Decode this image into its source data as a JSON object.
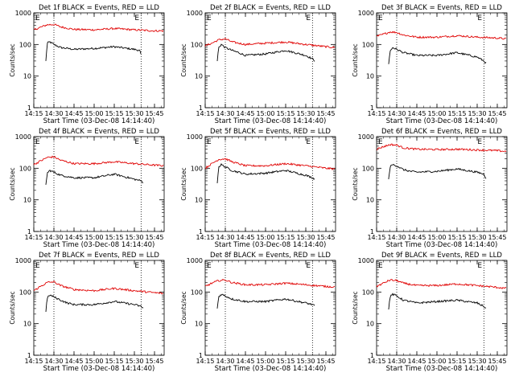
{
  "shared": {
    "ylabel": "Counts/sec",
    "xlabel": "Start Time (03-Dec-08 14:14:40)",
    "x_tick_labels": [
      "14:15",
      "14:30",
      "14:45",
      "15:00",
      "15:15",
      "15:30",
      "15:45"
    ],
    "y_tick_labels": [
      "1",
      "10",
      "100",
      "1000"
    ],
    "marker_label": "E",
    "colors": {
      "events": "#000000",
      "lld": "#e00000"
    }
  },
  "chart_data": [
    {
      "type": "line",
      "title": "Det 1f BLACK = Events, RED = LLD",
      "x_minutes_axis_start_label": "14:15",
      "xlim": [
        14.25,
        15.87
      ],
      "ylim": [
        1,
        1000
      ],
      "yscale": "log",
      "grid": false,
      "vlines": [
        "14:30",
        "15:35"
      ],
      "series": [
        {
          "name": "Events",
          "x": [
            "14:24",
            "14:25",
            "14:27",
            "14:30",
            "14:35",
            "14:40",
            "14:45",
            "15:00",
            "15:15",
            "15:30",
            "15:34",
            "15:35"
          ],
          "values": [
            30,
            110,
            120,
            100,
            80,
            75,
            70,
            75,
            85,
            70,
            65,
            45
          ]
        },
        {
          "name": "LLD",
          "x": [
            "14:15",
            "14:20",
            "14:25",
            "14:30",
            "14:35",
            "14:45",
            "15:00",
            "15:15",
            "15:30",
            "15:45",
            "15:52"
          ],
          "values": [
            290,
            350,
            420,
            430,
            360,
            300,
            290,
            320,
            290,
            270,
            270
          ]
        }
      ]
    },
    {
      "type": "line",
      "title": "Det 2f BLACK = Events, RED = LLD",
      "xlim": [
        14.25,
        15.87
      ],
      "ylim": [
        1,
        1000
      ],
      "yscale": "log",
      "grid": false,
      "vlines": [
        "14:30",
        "15:35"
      ],
      "series": [
        {
          "name": "Events",
          "x": [
            "14:24",
            "14:25",
            "14:27",
            "14:30",
            "14:35",
            "14:40",
            "14:45",
            "15:00",
            "15:15",
            "15:30",
            "15:35",
            "15:37"
          ],
          "values": [
            30,
            80,
            100,
            80,
            65,
            55,
            45,
            50,
            65,
            45,
            35,
            30
          ]
        },
        {
          "name": "LLD",
          "x": [
            "14:15",
            "14:20",
            "14:25",
            "14:30",
            "14:35",
            "14:45",
            "15:00",
            "15:15",
            "15:30",
            "15:45",
            "15:52"
          ],
          "values": [
            90,
            110,
            140,
            150,
            120,
            100,
            110,
            120,
            100,
            85,
            80
          ]
        }
      ]
    },
    {
      "type": "line",
      "title": "Det 3f BLACK = Events, RED = LLD",
      "xlim": [
        14.25,
        15.87
      ],
      "ylim": [
        1,
        1000
      ],
      "yscale": "log",
      "grid": false,
      "vlines": [
        "14:30",
        "15:35"
      ],
      "series": [
        {
          "name": "Events",
          "x": [
            "14:24",
            "14:25",
            "14:27",
            "14:30",
            "14:35",
            "14:40",
            "14:45",
            "15:00",
            "15:15",
            "15:30",
            "15:35",
            "15:37"
          ],
          "values": [
            25,
            60,
            80,
            70,
            55,
            50,
            45,
            45,
            55,
            40,
            30,
            25
          ]
        },
        {
          "name": "LLD",
          "x": [
            "14:15",
            "14:20",
            "14:25",
            "14:30",
            "14:35",
            "14:45",
            "15:00",
            "15:15",
            "15:30",
            "15:45",
            "15:52"
          ],
          "values": [
            180,
            210,
            250,
            240,
            200,
            170,
            170,
            190,
            170,
            160,
            150
          ]
        }
      ]
    },
    {
      "type": "line",
      "title": "Det 4f BLACK = Events, RED = LLD",
      "xlim": [
        14.25,
        15.87
      ],
      "ylim": [
        1,
        1000
      ],
      "yscale": "log",
      "grid": false,
      "vlines": [
        "14:30",
        "15:35"
      ],
      "series": [
        {
          "name": "Events",
          "x": [
            "14:24",
            "14:25",
            "14:27",
            "14:30",
            "14:35",
            "14:40",
            "14:45",
            "15:00",
            "15:15",
            "15:30",
            "15:35",
            "15:37"
          ],
          "values": [
            30,
            70,
            85,
            75,
            60,
            55,
            50,
            50,
            65,
            45,
            40,
            35
          ]
        },
        {
          "name": "LLD",
          "x": [
            "14:15",
            "14:20",
            "14:25",
            "14:30",
            "14:35",
            "14:45",
            "15:00",
            "15:15",
            "15:30",
            "15:45",
            "15:52"
          ],
          "values": [
            130,
            170,
            220,
            230,
            180,
            140,
            140,
            160,
            140,
            125,
            120
          ]
        }
      ]
    },
    {
      "type": "line",
      "title": "Det 5f BLACK = Events, RED = LLD",
      "xlim": [
        14.25,
        15.87
      ],
      "ylim": [
        1,
        1000
      ],
      "yscale": "log",
      "grid": false,
      "vlines": [
        "14:30",
        "15:35"
      ],
      "series": [
        {
          "name": "Events",
          "x": [
            "14:24",
            "14:25",
            "14:27",
            "14:30",
            "14:35",
            "14:40",
            "14:45",
            "15:00",
            "15:15",
            "15:30",
            "15:35",
            "15:37"
          ],
          "values": [
            35,
            110,
            130,
            110,
            85,
            75,
            65,
            70,
            85,
            60,
            50,
            45
          ]
        },
        {
          "name": "LLD",
          "x": [
            "14:15",
            "14:20",
            "14:25",
            "14:30",
            "14:35",
            "14:45",
            "15:00",
            "15:15",
            "15:30",
            "15:45",
            "15:52"
          ],
          "values": [
            100,
            140,
            190,
            200,
            160,
            120,
            120,
            140,
            120,
            100,
            95
          ]
        }
      ]
    },
    {
      "type": "line",
      "title": "Det 6f BLACK = Events, RED = LLD",
      "xlim": [
        14.25,
        15.87
      ],
      "ylim": [
        1,
        1000
      ],
      "yscale": "log",
      "grid": false,
      "vlines": [
        "14:30",
        "15:35"
      ],
      "series": [
        {
          "name": "Events",
          "x": [
            "14:24",
            "14:25",
            "14:27",
            "14:30",
            "14:35",
            "14:40",
            "14:45",
            "15:00",
            "15:15",
            "15:30",
            "15:35",
            "15:37"
          ],
          "values": [
            45,
            110,
            130,
            120,
            90,
            80,
            75,
            80,
            95,
            75,
            65,
            45
          ]
        },
        {
          "name": "LLD",
          "x": [
            "14:15",
            "14:20",
            "14:25",
            "14:30",
            "14:35",
            "14:45",
            "15:00",
            "15:15",
            "15:30",
            "15:45",
            "15:52"
          ],
          "values": [
            400,
            480,
            560,
            540,
            440,
            400,
            390,
            400,
            380,
            360,
            340
          ]
        }
      ]
    },
    {
      "type": "line",
      "title": "Det 7f BLACK = Events, RED = LLD",
      "xlim": [
        14.25,
        15.87
      ],
      "ylim": [
        1,
        1000
      ],
      "yscale": "log",
      "grid": false,
      "vlines": [
        "14:30",
        "15:35"
      ],
      "series": [
        {
          "name": "Events",
          "x": [
            "14:24",
            "14:25",
            "14:27",
            "14:30",
            "14:35",
            "14:40",
            "14:45",
            "15:00",
            "15:15",
            "15:30",
            "15:35",
            "15:37"
          ],
          "values": [
            25,
            65,
            80,
            70,
            55,
            45,
            40,
            40,
            50,
            40,
            35,
            30
          ]
        },
        {
          "name": "LLD",
          "x": [
            "14:15",
            "14:20",
            "14:25",
            "14:30",
            "14:35",
            "14:45",
            "15:00",
            "15:15",
            "15:30",
            "15:45",
            "15:52"
          ],
          "values": [
            110,
            150,
            200,
            210,
            160,
            120,
            110,
            130,
            110,
            95,
            90
          ]
        }
      ]
    },
    {
      "type": "line",
      "title": "Det 8f BLACK = Events, RED = LLD",
      "xlim": [
        14.25,
        15.87
      ],
      "ylim": [
        1,
        1000
      ],
      "yscale": "log",
      "grid": false,
      "vlines": [
        "14:30",
        "15:35"
      ],
      "series": [
        {
          "name": "Events",
          "x": [
            "14:24",
            "14:25",
            "14:27",
            "14:30",
            "14:35",
            "14:40",
            "14:45",
            "15:00",
            "15:15",
            "15:30",
            "15:35",
            "15:37"
          ],
          "values": [
            30,
            70,
            85,
            75,
            60,
            55,
            50,
            50,
            60,
            45,
            40,
            35
          ]
        },
        {
          "name": "LLD",
          "x": [
            "14:15",
            "14:20",
            "14:25",
            "14:30",
            "14:35",
            "14:45",
            "15:00",
            "15:15",
            "15:30",
            "15:45",
            "15:52"
          ],
          "values": [
            150,
            190,
            230,
            240,
            200,
            170,
            170,
            190,
            170,
            150,
            145
          ]
        }
      ]
    },
    {
      "type": "line",
      "title": "Det 9f BLACK = Events, RED = LLD",
      "xlim": [
        14.25,
        15.87
      ],
      "ylim": [
        1,
        1000
      ],
      "yscale": "log",
      "grid": false,
      "vlines": [
        "14:30",
        "15:35"
      ],
      "series": [
        {
          "name": "Events",
          "x": [
            "14:24",
            "14:25",
            "14:27",
            "14:30",
            "14:35",
            "14:40",
            "14:45",
            "15:00",
            "15:15",
            "15:30",
            "15:35",
            "15:37"
          ],
          "values": [
            30,
            70,
            85,
            75,
            55,
            50,
            45,
            50,
            55,
            45,
            35,
            30
          ]
        },
        {
          "name": "LLD",
          "x": [
            "14:15",
            "14:20",
            "14:25",
            "14:30",
            "14:35",
            "14:45",
            "15:00",
            "15:15",
            "15:30",
            "15:45",
            "15:52"
          ],
          "values": [
            150,
            190,
            240,
            230,
            190,
            160,
            160,
            180,
            160,
            140,
            130
          ]
        }
      ]
    }
  ]
}
